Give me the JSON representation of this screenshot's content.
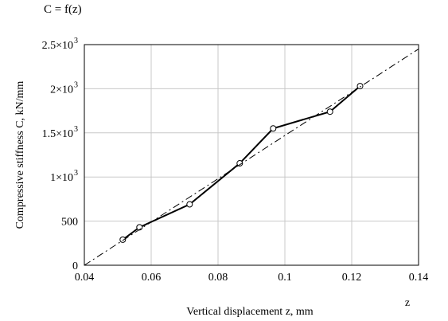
{
  "chart_data": {
    "type": "line",
    "title": "C = f(z)",
    "xlabel": "Vertical displacement z, mm",
    "x_var": "z",
    "ylabel": "Compressive stiffness C, kN/mm",
    "xlim": [
      0.04,
      0.14
    ],
    "ylim": [
      0,
      2500
    ],
    "grid": true,
    "x_ticks": [
      {
        "value": 0.04,
        "label": "0.04"
      },
      {
        "value": 0.06,
        "label": "0.06"
      },
      {
        "value": 0.08,
        "label": "0.08"
      },
      {
        "value": 0.1,
        "label": "0.1"
      },
      {
        "value": 0.12,
        "label": "0.12"
      },
      {
        "value": 0.14,
        "label": "0.14"
      }
    ],
    "y_ticks": [
      {
        "value": 0,
        "label": "0",
        "sup": ""
      },
      {
        "value": 500,
        "label": "500",
        "sup": ""
      },
      {
        "value": 1000,
        "label": "1×10",
        "sup": "3"
      },
      {
        "value": 1500,
        "label": "1.5×10",
        "sup": "3"
      },
      {
        "value": 2000,
        "label": "2×10",
        "sup": "3"
      },
      {
        "value": 2500,
        "label": "2.5×10",
        "sup": "3"
      }
    ],
    "series": [
      {
        "style": "solid",
        "markers": "circle",
        "color": "#000000",
        "x": [
          0.0515,
          0.0565,
          0.0715,
          0.0865,
          0.0965,
          0.1135,
          0.1225
        ],
        "y": [
          290,
          430,
          690,
          1155,
          1550,
          1740,
          2030
        ]
      },
      {
        "style": "dashed",
        "markers": "none",
        "color": "#000000",
        "x": [
          0.04,
          0.14
        ],
        "y": [
          0,
          2450
        ]
      }
    ]
  }
}
